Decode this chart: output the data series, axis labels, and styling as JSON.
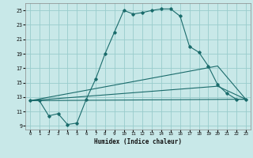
{
  "background_color": "#c8e8e8",
  "grid_color": "#99cccc",
  "line_color": "#1a6b6b",
  "xlabel": "Humidex (Indice chaleur)",
  "xlim": [
    -0.5,
    23.5
  ],
  "ylim": [
    8.5,
    26.0
  ],
  "xticks": [
    0,
    1,
    2,
    3,
    4,
    5,
    6,
    7,
    8,
    9,
    10,
    11,
    12,
    13,
    14,
    15,
    16,
    17,
    18,
    19,
    20,
    21,
    22,
    23
  ],
  "yticks": [
    9,
    11,
    13,
    15,
    17,
    19,
    21,
    23,
    25
  ],
  "line1_x": [
    0,
    1,
    2,
    3,
    4,
    5,
    6,
    7,
    8,
    9,
    10,
    11,
    12,
    13,
    14,
    15,
    16,
    17,
    18,
    19,
    20,
    21,
    22,
    23
  ],
  "line1_y": [
    12.5,
    12.5,
    10.4,
    10.7,
    9.2,
    9.4,
    12.7,
    15.5,
    19.0,
    22.0,
    25.0,
    24.5,
    24.7,
    25.0,
    25.2,
    25.2,
    24.2,
    20.0,
    19.2,
    17.3,
    14.7,
    13.5,
    12.7,
    12.7
  ],
  "line2_x": [
    0,
    23
  ],
  "line2_y": [
    12.5,
    12.7
  ],
  "line3_x": [
    0,
    20,
    23
  ],
  "line3_y": [
    12.5,
    17.3,
    12.7
  ],
  "line4_x": [
    0,
    20,
    23
  ],
  "line4_y": [
    12.5,
    14.5,
    12.7
  ]
}
